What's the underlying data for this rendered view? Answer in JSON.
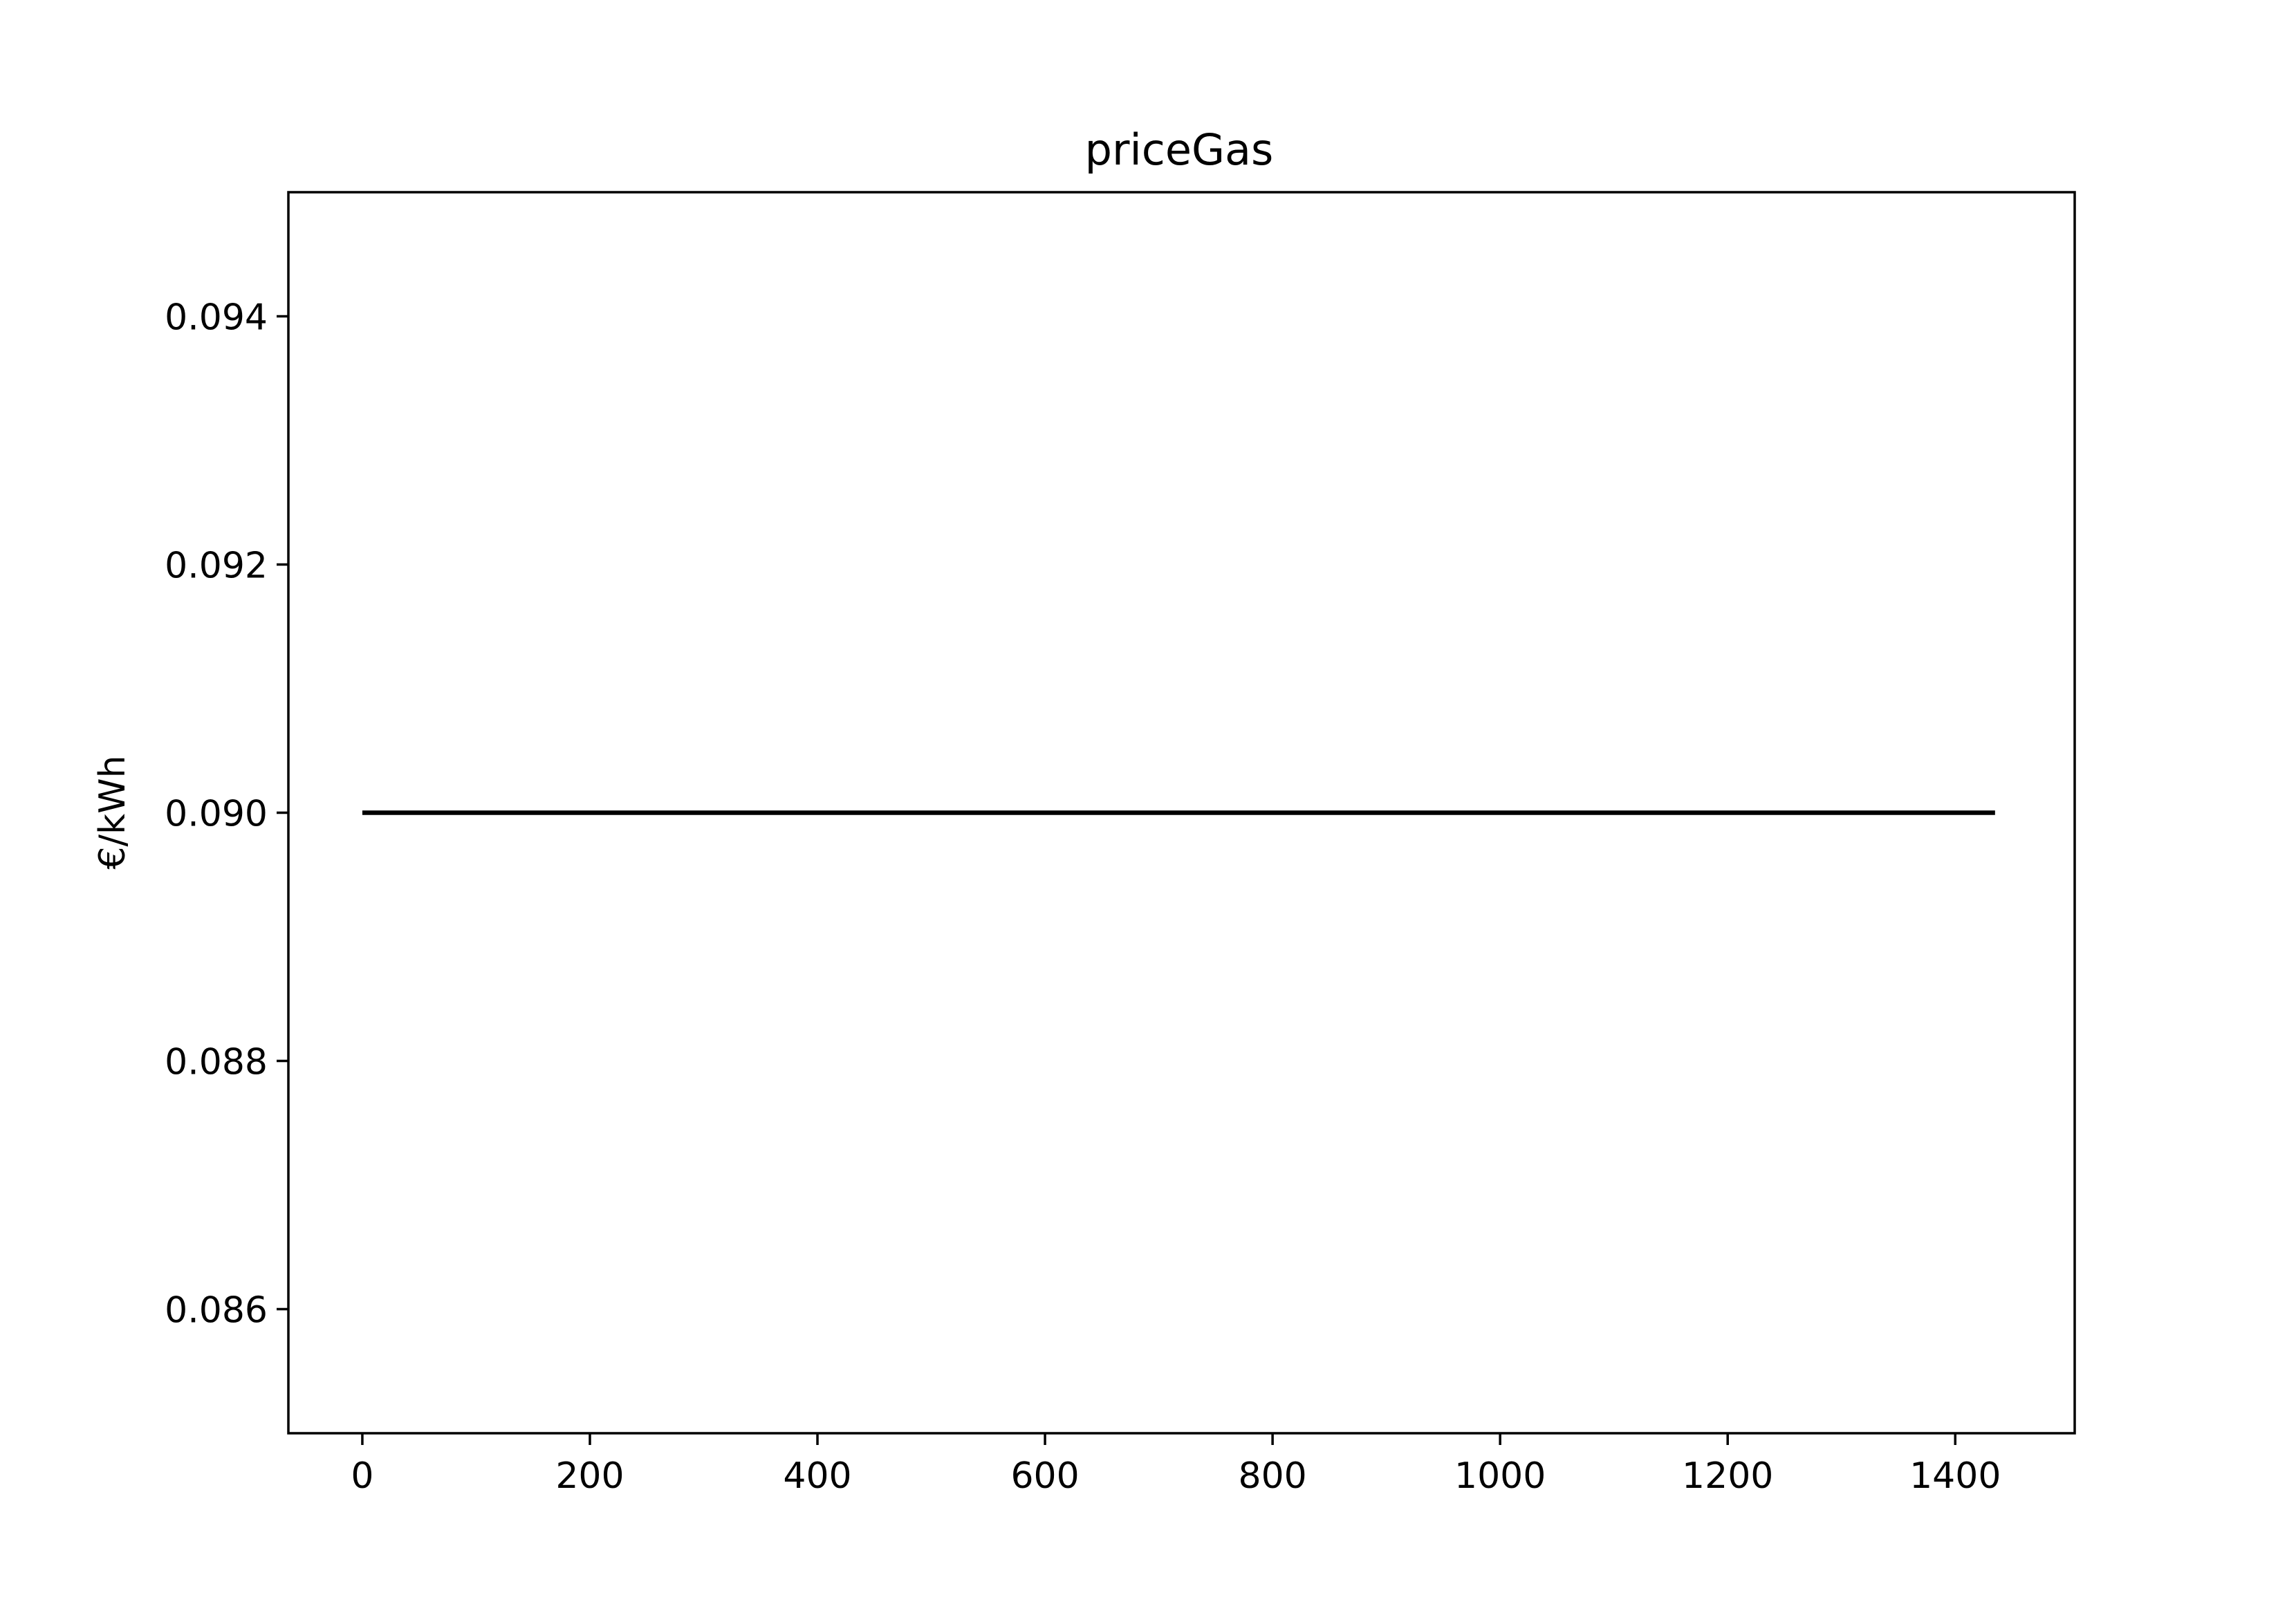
{
  "chart_data": {
    "type": "line",
    "title": "priceGas",
    "xlabel": "",
    "ylabel": "€/kWh",
    "xlim": [
      -65,
      1505
    ],
    "ylim": [
      0.085,
      0.095
    ],
    "xticks": [
      0,
      200,
      400,
      600,
      800,
      1000,
      1200,
      1400
    ],
    "xtick_labels": [
      "0",
      "200",
      "400",
      "600",
      "800",
      "1000",
      "1200",
      "1400"
    ],
    "yticks": [
      0.086,
      0.088,
      0.09,
      0.092,
      0.094
    ],
    "ytick_labels": [
      "0.086",
      "0.088",
      "0.090",
      "0.092",
      "0.094"
    ],
    "grid": false,
    "series": [
      {
        "color": "#000000",
        "x": [
          0,
          200,
          400,
          600,
          800,
          1000,
          1200,
          1400,
          1435
        ],
        "y": [
          0.09,
          0.09,
          0.09,
          0.09,
          0.09,
          0.09,
          0.09,
          0.09,
          0.09
        ]
      }
    ]
  }
}
